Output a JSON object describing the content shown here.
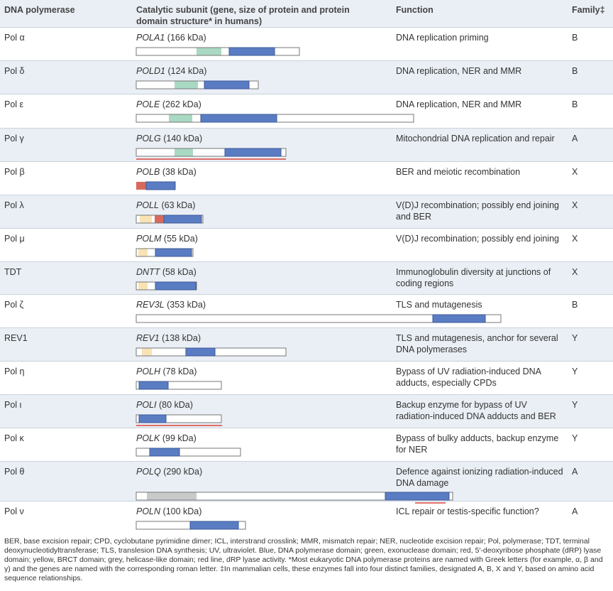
{
  "header": {
    "polymerase": "DNA polymerase",
    "subunit": "Catalytic subunit (gene, size of protein and protein domain structure* in humans)",
    "function": "Function",
    "family": "Family‡"
  },
  "rows": [
    {
      "polymerase": "Pol α",
      "gene": "POLA1",
      "size": "(166 kDa)",
      "function": "DNA replication priming",
      "family": "B"
    },
    {
      "polymerase": "Pol δ",
      "gene": "POLD1",
      "size": "(124 kDa)",
      "function": "DNA replication, NER and MMR",
      "family": "B"
    },
    {
      "polymerase": "Pol ε",
      "gene": "POLE",
      "size": "(262 kDa)",
      "function": "DNA replication, NER and MMR",
      "family": "B"
    },
    {
      "polymerase": "Pol γ",
      "gene": "POLG",
      "size": "(140 kDa)",
      "function": "Mitochondrial DNA replication and repair",
      "family": "A"
    },
    {
      "polymerase": "Pol β",
      "gene": "POLB",
      "size": "(38 kDa)",
      "function": "BER and meiotic recombination",
      "family": "X"
    },
    {
      "polymerase": "Pol λ",
      "gene": "POLL",
      "size": "(63 kDa)",
      "function": "V(D)J recombination; possibly end joining  and BER",
      "family": "X"
    },
    {
      "polymerase": "Pol μ",
      "gene": "POLM",
      "size": "(55 kDa)",
      "function": "V(D)J recombination; possibly end joining",
      "family": "X"
    },
    {
      "polymerase": "TDT",
      "gene": "DNTT",
      "size": "(58 kDa)",
      "function": "Immunoglobulin diversity at junctions of coding regions",
      "family": "X"
    },
    {
      "polymerase": "Pol ζ",
      "gene": "REV3L",
      "size": "(353 kDa)",
      "function": "TLS and mutagenesis",
      "family": "B"
    },
    {
      "polymerase": "REV1",
      "gene": "REV1",
      "size": "(138 kDa)",
      "function": "TLS and mutagenesis, anchor for several DNA polymerases",
      "family": "Y"
    },
    {
      "polymerase": "Pol η",
      "gene": "POLH",
      "size": "(78 kDa)",
      "function": "Bypass of UV radiation-induced DNA adducts, especially CPDs",
      "family": "Y"
    },
    {
      "polymerase": "Pol ι",
      "gene": "POLI",
      "size": "(80 kDa)",
      "function": "Backup enzyme for bypass of UV radiation-induced DNA adducts and BER",
      "family": "Y"
    },
    {
      "polymerase": "Pol κ",
      "gene": "POLK",
      "size": "(99 kDa)",
      "function": "Bypass of bulky adducts, backup enzyme for NER",
      "family": "Y"
    },
    {
      "polymerase": "Pol θ",
      "gene": "POLQ",
      "size": "(290 kDa)",
      "function": "Defence against ionizing radiation-induced DNA damage",
      "family": "A"
    },
    {
      "polymerase": "Pol ν",
      "gene": "POLN",
      "size": "(100 kDa)",
      "function": "ICL repair or testis-specific function?",
      "family": "A"
    }
  ],
  "footnote": "BER, base excision repair; CPD, cyclobutane pyrimidine dimer; ICL, interstrand crosslink; MMR, mismatch repair; NER, nucleotide excision repair; Pol, polymerase; TDT, terminal deoxynucleotidyltransferase; TLS, translesion DNA synthesis; UV, ultraviolet. Blue, DNA polymerase domain; green, exonuclease domain; red, 5′-deoxyribose phosphate (dRP) lyase domain; yellow, BRCT domain; grey, helicase-like domain; red line, dRP lyase activity. *Most eukaryotic DNA polymerase proteins are named with Greek letters (for example, α, β and γ) and the genes are named with the corresponding roman letter. ‡In mammalian cells, these enzymes fall into four distinct families, designated A, B, X and Y, based on amino acid sequence relationships."
}
